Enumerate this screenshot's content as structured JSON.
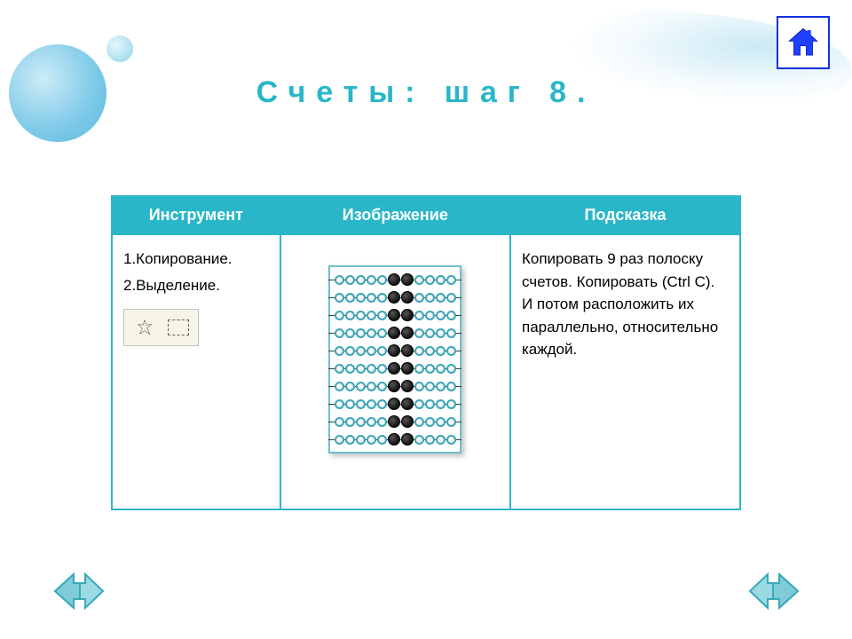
{
  "title": "Счеты: шаг 8.",
  "colors": {
    "accent": "#29b6c9",
    "table_border": "#2fb6c6",
    "header_bg": "#29b6c9",
    "header_text": "#ffffff",
    "home_border": "#1030e0",
    "arrow_fill": "#7fccd9",
    "arrow_stroke": "#2aa5b7",
    "bead_ring": "#3ba6b6"
  },
  "home": {
    "label": "home"
  },
  "table": {
    "headers": {
      "col1": "Инструмент",
      "col2": "Изображение",
      "col3": "Подсказка"
    },
    "instrument": {
      "line1": "1.Копирование.",
      "line2": "2.Выделение.",
      "icon_names": [
        "free-form-select-icon",
        "rect-select-icon"
      ]
    },
    "hint": "Копировать 9 раз полоску счетов. Копировать (Ctrl C). И потом расположить их параллельно, относительно каждой."
  },
  "abacus": {
    "rows": 10,
    "beads_per_row": 11,
    "black_bead_indices": [
      5,
      6
    ],
    "bead_colors": {
      "white_ring": "#3ba6b6",
      "black": "#111111"
    }
  },
  "nav": {
    "prev_label": "previous",
    "next_label": "next"
  }
}
